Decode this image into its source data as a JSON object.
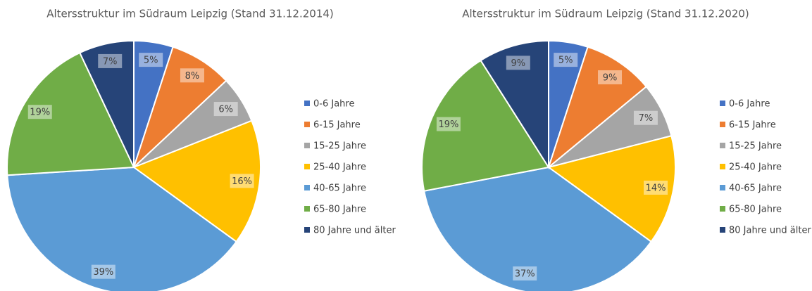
{
  "chart_data": [
    {
      "type": "pie",
      "title": "Altersstruktur  im Südraum Leipzig (Stand 31.12.2014)",
      "categories": [
        "0-6 Jahre",
        "6-15 Jahre",
        "15-25 Jahre",
        "25-40 Jahre",
        "40-65 Jahre",
        "65-80 Jahre",
        "80 Jahre und älter"
      ],
      "values": [
        5,
        8,
        6,
        16,
        39,
        19,
        7
      ],
      "value_labels": [
        "5%",
        "8%",
        "6%",
        "16%",
        "39%",
        "19%",
        "7%"
      ],
      "colors": [
        "#4472c4",
        "#ed7d31",
        "#a5a5a5",
        "#ffc000",
        "#5b9bd5",
        "#70ad47",
        "#264478"
      ],
      "legend": "right"
    },
    {
      "type": "pie",
      "title": "Altersstruktur  im Südraum Leipzig (Stand 31.12.2020)",
      "categories": [
        "0-6 Jahre",
        "6-15 Jahre",
        "15-25 Jahre",
        "25-40 Jahre",
        "40-65 Jahre",
        "65-80 Jahre",
        "80 Jahre und älter"
      ],
      "values": [
        5,
        9,
        7,
        14,
        37,
        19,
        9
      ],
      "value_labels": [
        "5%",
        "9%",
        "7%",
        "14%",
        "37%",
        "19%",
        "9%"
      ],
      "colors": [
        "#4472c4",
        "#ed7d31",
        "#a5a5a5",
        "#ffc000",
        "#5b9bd5",
        "#70ad47",
        "#264478"
      ],
      "legend": "right"
    }
  ]
}
